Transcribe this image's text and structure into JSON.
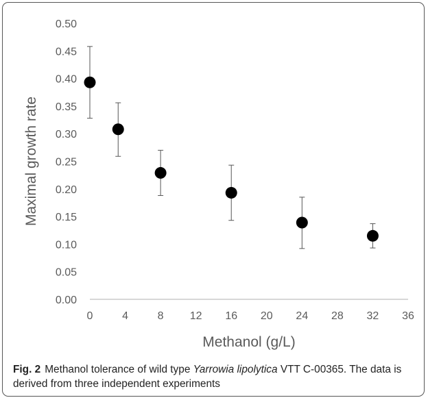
{
  "figure": {
    "caption": {
      "label": "Fig. 2",
      "text_before": "Methanol tolerance of wild type ",
      "species": "Yarrowia lipolytica",
      "text_after": " VTT C-00365. The data is derived from three independent experiments"
    }
  },
  "chart_data": {
    "type": "scatter",
    "xlabel": "Methanol (g/L)",
    "ylabel": "Maximal growth rate",
    "xlim": [
      0,
      36
    ],
    "ylim": [
      0,
      0.5
    ],
    "x_ticks": [
      "0",
      "4",
      "8",
      "12",
      "16",
      "20",
      "24",
      "28",
      "32",
      "36"
    ],
    "y_ticks": [
      "0.00",
      "0.05",
      "0.10",
      "0.15",
      "0.20",
      "0.25",
      "0.30",
      "0.35",
      "0.40",
      "0.45",
      "0.50"
    ],
    "grid": false,
    "marker_color": "#000000",
    "points": [
      {
        "x": 0,
        "y": 0.393,
        "err_low": 0.328,
        "err_high": 0.458
      },
      {
        "x": 3.2,
        "y": 0.308,
        "err_low": 0.259,
        "err_high": 0.356
      },
      {
        "x": 8,
        "y": 0.229,
        "err_low": 0.188,
        "err_high": 0.27
      },
      {
        "x": 16,
        "y": 0.193,
        "err_low": 0.143,
        "err_high": 0.243
      },
      {
        "x": 24,
        "y": 0.139,
        "err_low": 0.092,
        "err_high": 0.185
      },
      {
        "x": 32,
        "y": 0.115,
        "err_low": 0.093,
        "err_high": 0.137
      }
    ]
  }
}
